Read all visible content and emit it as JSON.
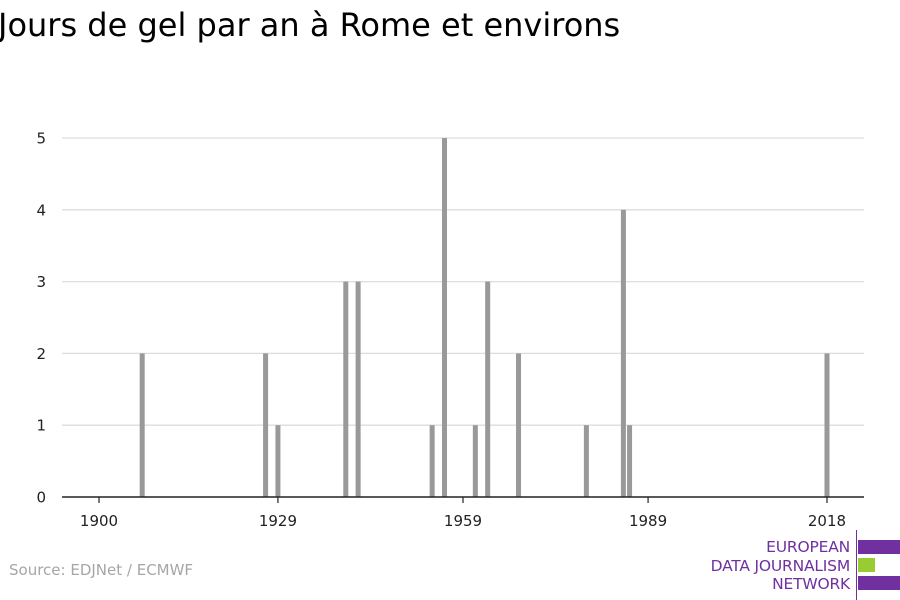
{
  "title": "Jours de gel par an à Rome et environs",
  "source": "Source: EDJNet / ECMWF",
  "logo": {
    "lines": [
      "EUROPEAN",
      "DATA JOURNALISM",
      "NETWORK"
    ],
    "colors": {
      "purple": "#7030a0",
      "green": "#99cc33"
    }
  },
  "chart_data": {
    "type": "bar",
    "title": "Jours de gel par an à Rome et environs",
    "xlabel": "",
    "ylabel": "",
    "x": [
      1907,
      1927,
      1929,
      1940,
      1942,
      1954,
      1956,
      1961,
      1963,
      1968,
      1979,
      1985,
      1986,
      2018
    ],
    "values": [
      2,
      2,
      1,
      3,
      3,
      1,
      5,
      1,
      3,
      2,
      1,
      4,
      1,
      2
    ],
    "xlim": [
      1894,
      2024
    ],
    "ylim": [
      0,
      5
    ],
    "xticks": [
      1900,
      1929,
      1959,
      1989,
      2018
    ],
    "yticks": [
      0,
      1,
      2,
      3,
      4,
      5
    ],
    "bar_color": "#999999",
    "grid": true,
    "legend": "none"
  }
}
